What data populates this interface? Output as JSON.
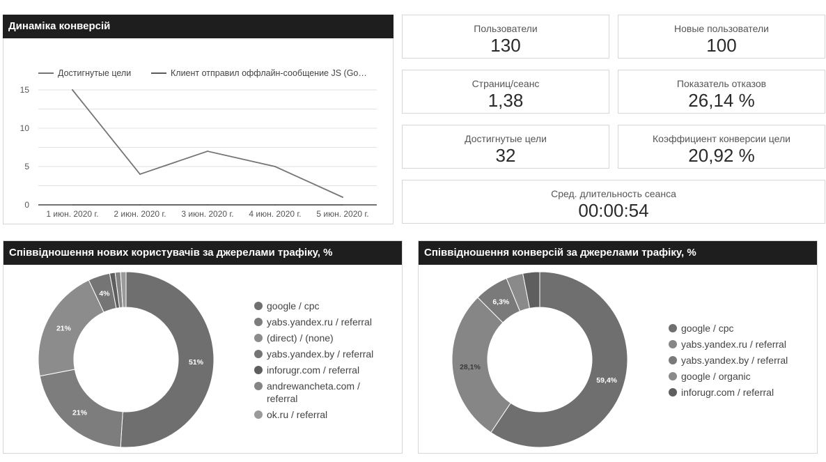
{
  "line_panel": {
    "title": "Динаміка конверсій"
  },
  "kpis": {
    "users": {
      "label": "Пользователи",
      "value": "130"
    },
    "new_users": {
      "label": "Новые пользователи",
      "value": "100"
    },
    "pages_per_session": {
      "label": "Страниц/сеанс",
      "value": "1,38"
    },
    "bounce_rate": {
      "label": "Показатель отказов",
      "value": "26,14 %"
    },
    "goals_completed": {
      "label": "Достигнутые цели",
      "value": "32"
    },
    "goal_conversion_rate": {
      "label": "Коэффициент конверсии цели",
      "value": "20,92 %"
    },
    "avg_session_duration": {
      "label": "Сред. длительность сеанса",
      "value": "00:00:54"
    }
  },
  "donut1_panel": {
    "title": "Співвідношення нових користувачів за джерелами трафіку, %"
  },
  "donut2_panel": {
    "title": "Співвідношення конверсій за джерелами трафіку, %"
  },
  "colors": {
    "header_bg": "#1e1e1e",
    "line": "#757575",
    "grid": "#e0e0e0"
  },
  "chart_data": [
    {
      "type": "line",
      "categories": [
        "1 июн. 2020 г.",
        "2 июн. 2020 г.",
        "3 июн. 2020 г.",
        "4 июн. 2020 г.",
        "5 июн. 2020 г."
      ],
      "series": [
        {
          "name": "Достигнутые цели",
          "values": [
            15,
            4,
            7,
            5,
            1
          ],
          "color": "#757575"
        },
        {
          "name": "Клиент отправил оффлайн-сообщение JS (Go…",
          "values": [
            0,
            0,
            0,
            0,
            0
          ],
          "color": "#5a5a5a"
        }
      ],
      "ylim": [
        0,
        15
      ],
      "yticks": [
        "0",
        "5",
        "10",
        "15"
      ],
      "grid": true,
      "legend": "top"
    },
    {
      "type": "pie",
      "donut": true,
      "labels": [
        "google / cpc",
        "yabs.yandex.ru / referral",
        "(direct) / (none)",
        "yabs.yandex.by / referral",
        "inforugr.com / referral",
        "andrewancheta.com / referral",
        "ok.ru / referral"
      ],
      "values": [
        51,
        21,
        21,
        4,
        1,
        1,
        1
      ],
      "slice_labels": [
        "51%",
        "21%",
        "21%",
        "4%",
        "",
        "",
        ""
      ],
      "colors": [
        "#6f6f6f",
        "#7d7d7d",
        "#8c8c8c",
        "#757575",
        "#5e5e5e",
        "#848484",
        "#9a9a9a"
      ],
      "legend": "right"
    },
    {
      "type": "pie",
      "donut": true,
      "labels": [
        "google / cpc",
        "yabs.yandex.ru / referral",
        "yabs.yandex.by / referral",
        "google / organic",
        "inforugr.com / referral"
      ],
      "values": [
        59.4,
        28.1,
        6.3,
        3.1,
        3.1
      ],
      "slice_labels": [
        "59,4%",
        "28,1%",
        "6,3%",
        "",
        ""
      ],
      "colors": [
        "#6f6f6f",
        "#868686",
        "#7a7a7a",
        "#8a8a8a",
        "#5f5f5f"
      ],
      "legend": "right"
    }
  ]
}
